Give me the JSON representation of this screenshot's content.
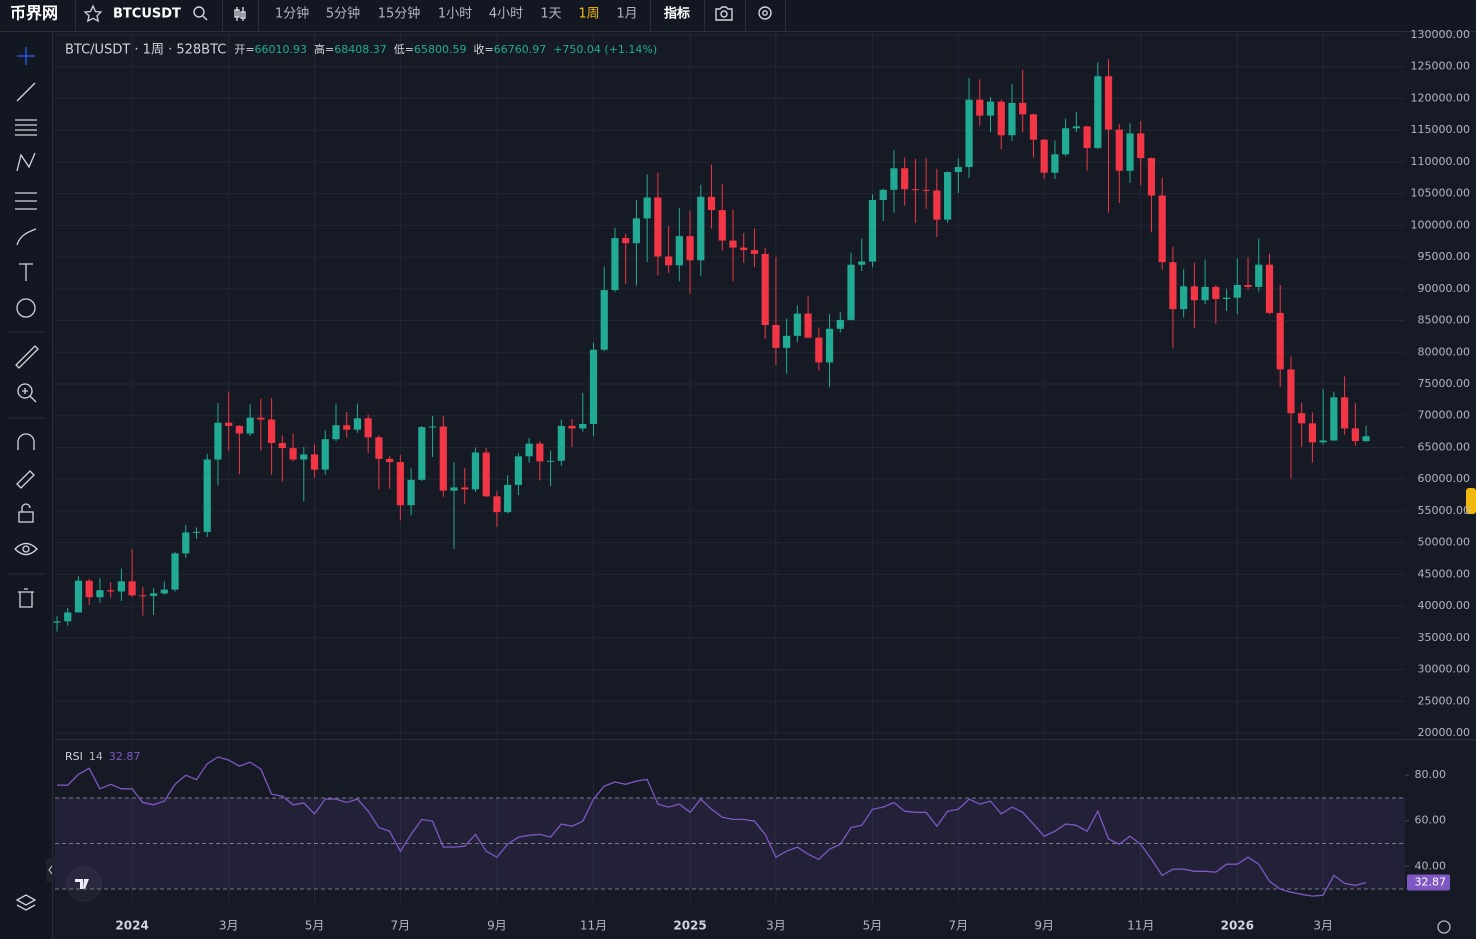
{
  "toolbar": {
    "logo": "币界网",
    "symbol": "BTCUSDT",
    "intervals": [
      "1分钟",
      "5分钟",
      "15分钟",
      "1小时",
      "4小时",
      "1天",
      "1周",
      "1月"
    ],
    "active_interval": 6,
    "indicators": "指标"
  },
  "chart_data": [
    {
      "type": "candlestick",
      "title": "BTC/USDT · 1周 · 528BTC",
      "legend_labels": [
        "开=",
        "高=",
        "低=",
        "收="
      ],
      "change": "+750.04 (+1.14%)",
      "up_color": "#22ab94",
      "down_color": "#f23645",
      "grid": true,
      "categories": [
        null,
        null,
        null,
        null,
        null,
        null,
        null,
        "2024",
        null,
        null,
        null,
        null,
        null,
        null,
        null,
        null,
        "3月",
        null,
        null,
        null,
        null,
        null,
        null,
        null,
        "5月",
        null,
        null,
        null,
        null,
        null,
        null,
        null,
        "7月",
        null,
        null,
        null,
        null,
        null,
        null,
        null,
        null,
        "9月",
        null,
        null,
        null,
        null,
        null,
        null,
        null,
        null,
        "11月",
        null,
        null,
        null,
        null,
        null,
        null,
        null,
        null,
        "2025",
        null,
        null,
        null,
        null,
        null,
        null,
        null,
        "3月",
        null,
        null,
        null,
        null,
        null,
        null,
        null,
        null,
        "5月",
        null,
        null,
        null,
        null,
        null,
        null,
        null,
        "7月",
        null,
        null,
        null,
        null,
        null,
        null,
        null,
        "9月",
        null,
        null,
        null,
        null,
        null,
        null,
        null,
        null,
        "11月",
        null,
        null,
        null,
        null,
        null,
        null,
        null,
        null,
        "2026",
        null,
        null,
        null,
        null,
        null,
        null,
        null,
        "3月",
        null,
        null,
        null,
        null
      ],
      "open": [
        37400,
        37600,
        39000,
        44000,
        41400,
        42500,
        42300,
        43900,
        41700,
        41600,
        42000,
        42600,
        48300,
        51600,
        51700,
        63100,
        68900,
        68400,
        67200,
        69700,
        69400,
        65700,
        64900,
        63100,
        63900,
        61500,
        66300,
        68500,
        67800,
        69600,
        66600,
        63200,
        62700,
        55900,
        59900,
        68200,
        68300,
        58200,
        58700,
        58400,
        64200,
        57300,
        54800,
        59100,
        63600,
        65600,
        62800,
        62900,
        68400,
        68000,
        68700,
        80400,
        89800,
        98000,
        97200,
        101100,
        104400,
        95100,
        93700,
        98300,
        94500,
        104500,
        102400,
        97600,
        96500,
        96100,
        95500,
        84300,
        80700,
        82600,
        86100,
        82300,
        78400,
        83700,
        85100,
        93800,
        94300,
        104000,
        105600,
        109000,
        105700,
        105600,
        105500,
        100900,
        108400,
        109200,
        119800,
        117300,
        119500,
        114200,
        119300,
        117500,
        113500,
        108300,
        111200,
        115300,
        115600,
        112200,
        123500,
        115100,
        108600,
        114500,
        110600,
        104700,
        94200,
        86800,
        90400,
        88200,
        90300,
        88400,
        88600,
        90600,
        90300,
        93800,
        86200,
        77300,
        70400,
        68800,
        65800,
        66100,
        72900,
        68000,
        66010.93
      ],
      "high": [
        38400,
        39700,
        44700,
        44300,
        44400,
        43800,
        45900,
        49000,
        43000,
        42800,
        43900,
        48500,
        52800,
        52400,
        64000,
        72000,
        73800,
        68500,
        71800,
        72700,
        72800,
        66900,
        67200,
        65100,
        65500,
        67700,
        71900,
        70600,
        71900,
        70200,
        66900,
        63600,
        63800,
        61700,
        68400,
        70000,
        70000,
        62700,
        61800,
        65000,
        64900,
        58100,
        60600,
        64100,
        66500,
        66000,
        64500,
        69400,
        69500,
        73600,
        81500,
        93500,
        99600,
        98700,
        104000,
        108000,
        108300,
        99900,
        102700,
        102300,
        106400,
        109600,
        106500,
        102500,
        98800,
        99500,
        96500,
        95000,
        85300,
        87400,
        88800,
        83900,
        86000,
        86400,
        95700,
        97900,
        104900,
        105800,
        111900,
        110700,
        110500,
        110600,
        108900,
        108500,
        110600,
        123200,
        123000,
        120200,
        119800,
        122300,
        124500,
        117600,
        113600,
        113400,
        116800,
        117900,
        115700,
        125700,
        126200,
        116000,
        116100,
        116400,
        110700,
        107500,
        96600,
        93100,
        94100,
        94600,
        90600,
        90000,
        94800,
        95000,
        97900,
        95500,
        90600,
        79300,
        72000,
        70500,
        74200,
        73800,
        76200,
        72000,
        68408.37
      ],
      "low": [
        36000,
        36900,
        39000,
        40200,
        40500,
        41300,
        40800,
        41500,
        38500,
        38600,
        41800,
        42300,
        47600,
        50600,
        50900,
        59000,
        64500,
        60800,
        66800,
        64500,
        60700,
        59600,
        62800,
        56500,
        60200,
        60700,
        66000,
        66600,
        67300,
        64100,
        58400,
        58500,
        53500,
        54300,
        59700,
        63500,
        57200,
        49000,
        56100,
        58000,
        57200,
        52500,
        54600,
        57500,
        62600,
        59800,
        58900,
        62100,
        65100,
        67500,
        66800,
        80200,
        89500,
        90800,
        90500,
        94200,
        92100,
        92500,
        91200,
        89200,
        92000,
        99500,
        96000,
        91200,
        94100,
        93400,
        82100,
        78000,
        76600,
        81600,
        82200,
        77100,
        74500,
        83100,
        85000,
        92800,
        93400,
        100700,
        102000,
        103100,
        100400,
        102600,
        98200,
        100400,
        105100,
        107500,
        115700,
        114700,
        112000,
        113300,
        114700,
        110700,
        107300,
        107300,
        110900,
        114700,
        108600,
        112000,
        102000,
        103500,
        106700,
        106300,
        98900,
        93000,
        80600,
        85500,
        83800,
        87600,
        84500,
        86500,
        86000,
        89900,
        89600,
        86000,
        74500,
        60100,
        65100,
        62600,
        65500,
        66000,
        67000,
        65300,
        65800.59
      ],
      "close": [
        37600,
        39000,
        44000,
        41400,
        42500,
        42300,
        43900,
        41700,
        41600,
        42000,
        42600,
        48300,
        51600,
        51700,
        63100,
        68900,
        68400,
        67200,
        69700,
        69400,
        65700,
        64900,
        63100,
        63900,
        61500,
        66300,
        68500,
        67800,
        69600,
        66600,
        63200,
        62700,
        55900,
        59900,
        68200,
        68300,
        58200,
        58700,
        58400,
        64200,
        57300,
        54800,
        59100,
        63600,
        65600,
        62800,
        62900,
        68400,
        68000,
        68700,
        80400,
        89800,
        98000,
        97200,
        101100,
        104400,
        95100,
        93700,
        98300,
        94500,
        104500,
        102400,
        97600,
        96500,
        96100,
        95500,
        84300,
        80700,
        82600,
        86100,
        82300,
        78400,
        83700,
        85100,
        93800,
        94300,
        104000,
        105600,
        109000,
        105700,
        105600,
        105500,
        100900,
        108400,
        109200,
        119800,
        117300,
        119500,
        114200,
        119300,
        117500,
        113500,
        108300,
        111200,
        115300,
        115600,
        112200,
        123500,
        115100,
        108600,
        114500,
        110600,
        104700,
        94200,
        86800,
        90400,
        88200,
        90300,
        88400,
        88600,
        90600,
        90300,
        93800,
        86200,
        77300,
        70400,
        68800,
        65800,
        66100,
        72900,
        68000,
        66000,
        66760.97
      ],
      "ylim": [
        20000,
        130000
      ],
      "yticks": [
        {
          "value": 20000,
          "label": "20000.00"
        },
        {
          "value": 25000,
          "label": "25000.00"
        },
        {
          "value": 30000,
          "label": "30000.00"
        },
        {
          "value": 35000,
          "label": "35000.00"
        },
        {
          "value": 40000,
          "label": "40000.00"
        },
        {
          "value": 45000,
          "label": "45000.00"
        },
        {
          "value": 50000,
          "label": "50000.00"
        },
        {
          "value": 55000,
          "label": "55000.00"
        },
        {
          "value": 60000,
          "label": "60000.00"
        },
        {
          "value": 65000,
          "label": "65000.00"
        },
        {
          "value": 70000,
          "label": "70000.00"
        },
        {
          "value": 75000,
          "label": "75000.00"
        },
        {
          "value": 80000,
          "label": "80000.00"
        },
        {
          "value": 85000,
          "label": "85000.00"
        },
        {
          "value": 90000,
          "label": "90000.00"
        },
        {
          "value": 95000,
          "label": "95000.00"
        },
        {
          "value": 100000,
          "label": "100000.00"
        },
        {
          "value": 105000,
          "label": "105000.00"
        },
        {
          "value": 110000,
          "label": "110000.00"
        },
        {
          "value": 115000,
          "label": "115000.00"
        },
        {
          "value": 120000,
          "label": "120000.00"
        },
        {
          "value": 125000,
          "label": "125000.00"
        },
        {
          "value": 130000,
          "label": "130000.00"
        }
      ]
    },
    {
      "type": "line",
      "title": "RSI",
      "period": 14,
      "color": "#7e57c2",
      "levels": [
        70,
        50,
        30
      ],
      "values": [
        75.6,
        75.6,
        80.4,
        83,
        74,
        76,
        74,
        74,
        68,
        67,
        68.6,
        76,
        80,
        78,
        85,
        88,
        86.6,
        84,
        85.7,
        82.6,
        71.6,
        70.8,
        67,
        67.8,
        63,
        69.5,
        69.5,
        68,
        69.5,
        64.2,
        57,
        55.4,
        46.6,
        54,
        60.6,
        59.8,
        48.4,
        48.4,
        48.8,
        54,
        46.6,
        44,
        49.7,
        52.8,
        53.6,
        54,
        52.8,
        58.5,
        57.6,
        59.8,
        69.5,
        75.2,
        77,
        76,
        77.4,
        78.2,
        67.3,
        66,
        67.3,
        63.7,
        69.5,
        65,
        61.5,
        60.6,
        60.6,
        59.8,
        54,
        44,
        46.6,
        48.4,
        45.3,
        43,
        47.5,
        49.7,
        57,
        58,
        65,
        66,
        68,
        64.2,
        63.7,
        63.7,
        57.6,
        64.2,
        65,
        69.5,
        67.3,
        68.6,
        63,
        66,
        63.7,
        58.5,
        53.2,
        55.4,
        58.5,
        58,
        55.4,
        64.2,
        52,
        49.7,
        53.2,
        49.7,
        43,
        36,
        38.7,
        38.7,
        37.8,
        37.8,
        37.4,
        40.9,
        40.9,
        44,
        40.9,
        33.4,
        30,
        28.6,
        27.7,
        26.9,
        27.3,
        36,
        32.5,
        31.6,
        32.87
      ],
      "ylim": [
        23,
        95
      ],
      "yticks": [
        {
          "value": 80,
          "label": "80.00"
        },
        {
          "value": 60,
          "label": "60.00"
        },
        {
          "value": 40,
          "label": "40.00"
        }
      ]
    }
  ]
}
